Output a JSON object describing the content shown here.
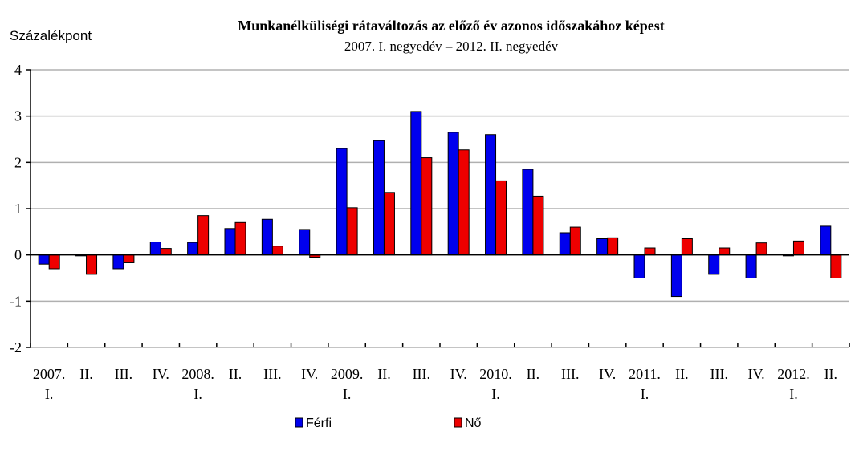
{
  "chart_data": {
    "type": "bar",
    "title": "Munkanélküliségi rátaváltozás az előző év azonos időszakához képest",
    "subtitle": "2007. I. negyedév – 2012. II. negyedév",
    "ylabel": "Százalékpont",
    "xlabel": "",
    "ylim": [
      -2,
      4
    ],
    "yticks": [
      4,
      3,
      2,
      1,
      0,
      -1,
      -2
    ],
    "grid": true,
    "legend_position": "bottom",
    "categories": [
      [
        "2007.",
        "I."
      ],
      [
        "II."
      ],
      [
        "III."
      ],
      [
        "IV."
      ],
      [
        "2008.",
        "I."
      ],
      [
        "II."
      ],
      [
        "III."
      ],
      [
        "IV."
      ],
      [
        "2009.",
        "I."
      ],
      [
        "II."
      ],
      [
        "III."
      ],
      [
        "IV."
      ],
      [
        "2010.",
        "I."
      ],
      [
        "II."
      ],
      [
        "III."
      ],
      [
        "IV."
      ],
      [
        "2011.",
        "I."
      ],
      [
        "II."
      ],
      [
        "III."
      ],
      [
        "IV."
      ],
      [
        "2012.",
        "I."
      ],
      [
        "II."
      ]
    ],
    "series": [
      {
        "name": "Férfi",
        "color": "#0000ee",
        "values": [
          -0.2,
          -0.02,
          -0.3,
          0.28,
          0.27,
          0.57,
          0.77,
          0.55,
          2.3,
          2.47,
          3.1,
          2.65,
          2.6,
          1.85,
          0.48,
          0.35,
          -0.5,
          -0.9,
          -0.42,
          -0.5,
          -0.02,
          0.62
        ]
      },
      {
        "name": "Nő",
        "color": "#ee0000",
        "values": [
          -0.3,
          -0.42,
          -0.17,
          0.14,
          0.85,
          0.7,
          0.19,
          -0.05,
          1.02,
          1.35,
          2.1,
          2.27,
          1.6,
          1.27,
          0.6,
          0.37,
          0.15,
          0.35,
          0.15,
          0.26,
          0.3,
          -0.5
        ]
      }
    ]
  }
}
